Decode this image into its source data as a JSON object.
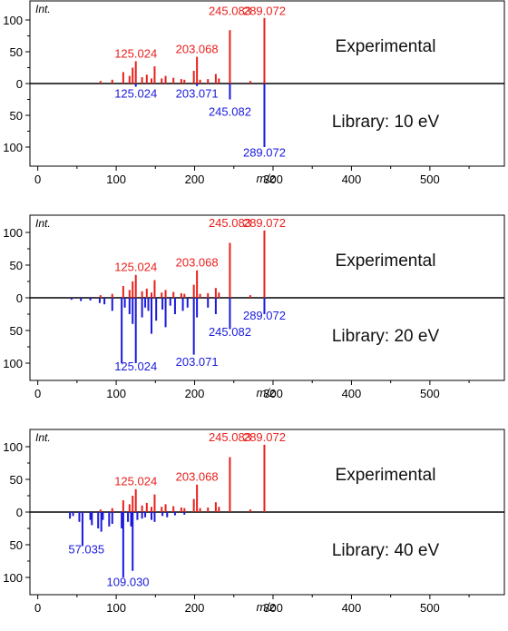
{
  "chart_data": [
    {
      "type": "mirror-spectrum",
      "axis_label_int": "Int.",
      "xlabel": "m/z",
      "xlim": [
        -10,
        595
      ],
      "ylim": [
        -120,
        115
      ],
      "x_ticks": [
        0,
        100,
        200,
        300,
        400,
        500
      ],
      "y_ticks": [
        100,
        50,
        0,
        50,
        100
      ],
      "colors": {
        "experimental": "#e8201c",
        "library": "#1a1adc",
        "axis": "#000000"
      },
      "experimental_label": "Experimental",
      "library_label": "Library: 10 eV",
      "experimental_peaks": [
        {
          "mz": 80,
          "int": 4
        },
        {
          "mz": 95,
          "int": 6
        },
        {
          "mz": 109,
          "int": 18
        },
        {
          "mz": 117,
          "int": 12
        },
        {
          "mz": 121,
          "int": 25
        },
        {
          "mz": 125,
          "int": 35
        },
        {
          "mz": 133,
          "int": 10
        },
        {
          "mz": 139,
          "int": 14
        },
        {
          "mz": 145,
          "int": 8
        },
        {
          "mz": 149,
          "int": 27
        },
        {
          "mz": 158,
          "int": 8
        },
        {
          "mz": 163,
          "int": 12
        },
        {
          "mz": 173,
          "int": 9
        },
        {
          "mz": 183,
          "int": 7
        },
        {
          "mz": 187,
          "int": 6
        },
        {
          "mz": 199,
          "int": 20
        },
        {
          "mz": 203,
          "int": 42
        },
        {
          "mz": 207,
          "int": 6
        },
        {
          "mz": 217,
          "int": 7
        },
        {
          "mz": 227,
          "int": 15
        },
        {
          "mz": 231,
          "int": 8
        },
        {
          "mz": 245,
          "int": 84
        },
        {
          "mz": 271,
          "int": 4
        },
        {
          "mz": 289,
          "int": 103
        }
      ],
      "library_peaks": [
        {
          "mz": 125,
          "int": 5
        },
        {
          "mz": 203,
          "int": 4
        },
        {
          "mz": 245,
          "int": 25
        },
        {
          "mz": 289,
          "int": 100
        }
      ],
      "peak_labels": [
        {
          "text": "245.083",
          "mz": 245,
          "int": 108,
          "series": "experimental"
        },
        {
          "text": "289.072",
          "mz": 289,
          "int": 108,
          "series": "experimental"
        },
        {
          "text": "125.024",
          "mz": 125,
          "int": 41,
          "series": "experimental"
        },
        {
          "text": "203.068",
          "mz": 203,
          "int": 48,
          "series": "experimental"
        },
        {
          "text": "125.024",
          "mz": 125,
          "int": -22,
          "series": "library"
        },
        {
          "text": "203.071",
          "mz": 203,
          "int": -22,
          "series": "library"
        },
        {
          "text": "245.082",
          "mz": 245,
          "int": -51,
          "series": "library"
        },
        {
          "text": "289.072",
          "mz": 289,
          "int": -115,
          "series": "library"
        }
      ]
    },
    {
      "type": "mirror-spectrum",
      "axis_label_int": "Int.",
      "xlabel": "m/z",
      "xlim": [
        -10,
        595
      ],
      "ylim": [
        -120,
        115
      ],
      "x_ticks": [
        0,
        100,
        200,
        300,
        400,
        500
      ],
      "y_ticks": [
        100,
        50,
        0,
        50,
        100
      ],
      "colors": {
        "experimental": "#e8201c",
        "library": "#1a1adc",
        "axis": "#000000"
      },
      "experimental_label": "Experimental",
      "library_label": "Library: 20 eV",
      "experimental_peaks": [
        {
          "mz": 80,
          "int": 4
        },
        {
          "mz": 95,
          "int": 6
        },
        {
          "mz": 109,
          "int": 18
        },
        {
          "mz": 117,
          "int": 12
        },
        {
          "mz": 121,
          "int": 25
        },
        {
          "mz": 125,
          "int": 35
        },
        {
          "mz": 133,
          "int": 10
        },
        {
          "mz": 139,
          "int": 14
        },
        {
          "mz": 145,
          "int": 8
        },
        {
          "mz": 149,
          "int": 27
        },
        {
          "mz": 158,
          "int": 8
        },
        {
          "mz": 163,
          "int": 12
        },
        {
          "mz": 173,
          "int": 9
        },
        {
          "mz": 183,
          "int": 7
        },
        {
          "mz": 187,
          "int": 6
        },
        {
          "mz": 199,
          "int": 20
        },
        {
          "mz": 203,
          "int": 42
        },
        {
          "mz": 207,
          "int": 6
        },
        {
          "mz": 217,
          "int": 7
        },
        {
          "mz": 227,
          "int": 15
        },
        {
          "mz": 231,
          "int": 8
        },
        {
          "mz": 245,
          "int": 84
        },
        {
          "mz": 271,
          "int": 4
        },
        {
          "mz": 289,
          "int": 103
        }
      ],
      "library_peaks": [
        {
          "mz": 43,
          "int": 3
        },
        {
          "mz": 55,
          "int": 5
        },
        {
          "mz": 67,
          "int": 4
        },
        {
          "mz": 79,
          "int": 8
        },
        {
          "mz": 85,
          "int": 10
        },
        {
          "mz": 95,
          "int": 20
        },
        {
          "mz": 107,
          "int": 100
        },
        {
          "mz": 111,
          "int": 15
        },
        {
          "mz": 117,
          "int": 25
        },
        {
          "mz": 121,
          "int": 40
        },
        {
          "mz": 125,
          "int": 100
        },
        {
          "mz": 133,
          "int": 30
        },
        {
          "mz": 137,
          "int": 15
        },
        {
          "mz": 141,
          "int": 20
        },
        {
          "mz": 145,
          "int": 55
        },
        {
          "mz": 151,
          "int": 35
        },
        {
          "mz": 159,
          "int": 18
        },
        {
          "mz": 163,
          "int": 45
        },
        {
          "mz": 169,
          "int": 12
        },
        {
          "mz": 175,
          "int": 25
        },
        {
          "mz": 185,
          "int": 20
        },
        {
          "mz": 191,
          "int": 15
        },
        {
          "mz": 199,
          "int": 87
        },
        {
          "mz": 203,
          "int": 30
        },
        {
          "mz": 217,
          "int": 15
        },
        {
          "mz": 227,
          "int": 25
        },
        {
          "mz": 245,
          "int": 48
        },
        {
          "mz": 289,
          "int": 25
        }
      ],
      "peak_labels": [
        {
          "text": "245.083",
          "mz": 245,
          "int": 108,
          "series": "experimental"
        },
        {
          "text": "289.072",
          "mz": 289,
          "int": 108,
          "series": "experimental"
        },
        {
          "text": "125.024",
          "mz": 125,
          "int": 41,
          "series": "experimental"
        },
        {
          "text": "203.068",
          "mz": 203,
          "int": 48,
          "series": "experimental"
        },
        {
          "text": "289.072",
          "mz": 289,
          "int": -33,
          "series": "library"
        },
        {
          "text": "245.082",
          "mz": 245,
          "int": -58,
          "series": "library"
        },
        {
          "text": "125.024",
          "mz": 125,
          "int": -111,
          "series": "library"
        },
        {
          "text": "203.071",
          "mz": 203,
          "int": -104,
          "series": "library"
        }
      ]
    },
    {
      "type": "mirror-spectrum",
      "axis_label_int": "Int.",
      "xlabel": "m/z",
      "xlim": [
        -10,
        595
      ],
      "ylim": [
        -120,
        115
      ],
      "x_ticks": [
        0,
        100,
        200,
        300,
        400,
        500
      ],
      "y_ticks": [
        100,
        50,
        0,
        50,
        100
      ],
      "colors": {
        "experimental": "#e8201c",
        "library": "#1a1adc",
        "axis": "#000000"
      },
      "experimental_label": "Experimental",
      "library_label": "Library: 40 eV",
      "experimental_peaks": [
        {
          "mz": 80,
          "int": 4
        },
        {
          "mz": 95,
          "int": 6
        },
        {
          "mz": 109,
          "int": 18
        },
        {
          "mz": 117,
          "int": 12
        },
        {
          "mz": 121,
          "int": 25
        },
        {
          "mz": 125,
          "int": 35
        },
        {
          "mz": 133,
          "int": 10
        },
        {
          "mz": 139,
          "int": 14
        },
        {
          "mz": 145,
          "int": 8
        },
        {
          "mz": 149,
          "int": 27
        },
        {
          "mz": 158,
          "int": 8
        },
        {
          "mz": 163,
          "int": 12
        },
        {
          "mz": 173,
          "int": 9
        },
        {
          "mz": 183,
          "int": 7
        },
        {
          "mz": 187,
          "int": 6
        },
        {
          "mz": 199,
          "int": 20
        },
        {
          "mz": 203,
          "int": 42
        },
        {
          "mz": 207,
          "int": 6
        },
        {
          "mz": 217,
          "int": 7
        },
        {
          "mz": 227,
          "int": 15
        },
        {
          "mz": 231,
          "int": 8
        },
        {
          "mz": 245,
          "int": 84
        },
        {
          "mz": 271,
          "int": 4
        },
        {
          "mz": 289,
          "int": 103
        }
      ],
      "library_peaks": [
        {
          "mz": 41,
          "int": 10
        },
        {
          "mz": 45,
          "int": 6
        },
        {
          "mz": 53,
          "int": 15
        },
        {
          "mz": 57,
          "int": 52
        },
        {
          "mz": 67,
          "int": 12
        },
        {
          "mz": 69,
          "int": 20
        },
        {
          "mz": 77,
          "int": 25
        },
        {
          "mz": 81,
          "int": 30
        },
        {
          "mz": 83,
          "int": 12
        },
        {
          "mz": 91,
          "int": 22
        },
        {
          "mz": 95,
          "int": 18
        },
        {
          "mz": 107,
          "int": 25
        },
        {
          "mz": 109,
          "int": 100
        },
        {
          "mz": 115,
          "int": 15
        },
        {
          "mz": 119,
          "int": 22
        },
        {
          "mz": 121,
          "int": 90
        },
        {
          "mz": 127,
          "int": 12
        },
        {
          "mz": 133,
          "int": 10
        },
        {
          "mz": 137,
          "int": 8
        },
        {
          "mz": 145,
          "int": 12
        },
        {
          "mz": 149,
          "int": 15
        },
        {
          "mz": 159,
          "int": 6
        },
        {
          "mz": 165,
          "int": 8
        },
        {
          "mz": 175,
          "int": 5
        },
        {
          "mz": 187,
          "int": 4
        }
      ],
      "peak_labels": [
        {
          "text": "245.083",
          "mz": 245,
          "int": 108,
          "series": "experimental"
        },
        {
          "text": "289.072",
          "mz": 289,
          "int": 108,
          "series": "experimental"
        },
        {
          "text": "125.024",
          "mz": 125,
          "int": 41,
          "series": "experimental"
        },
        {
          "text": "203.068",
          "mz": 203,
          "int": 48,
          "series": "experimental"
        },
        {
          "text": "57.035",
          "mz": 62,
          "int": -63,
          "series": "library"
        },
        {
          "text": "109.030",
          "mz": 115,
          "int": -113,
          "series": "library"
        }
      ]
    }
  ]
}
